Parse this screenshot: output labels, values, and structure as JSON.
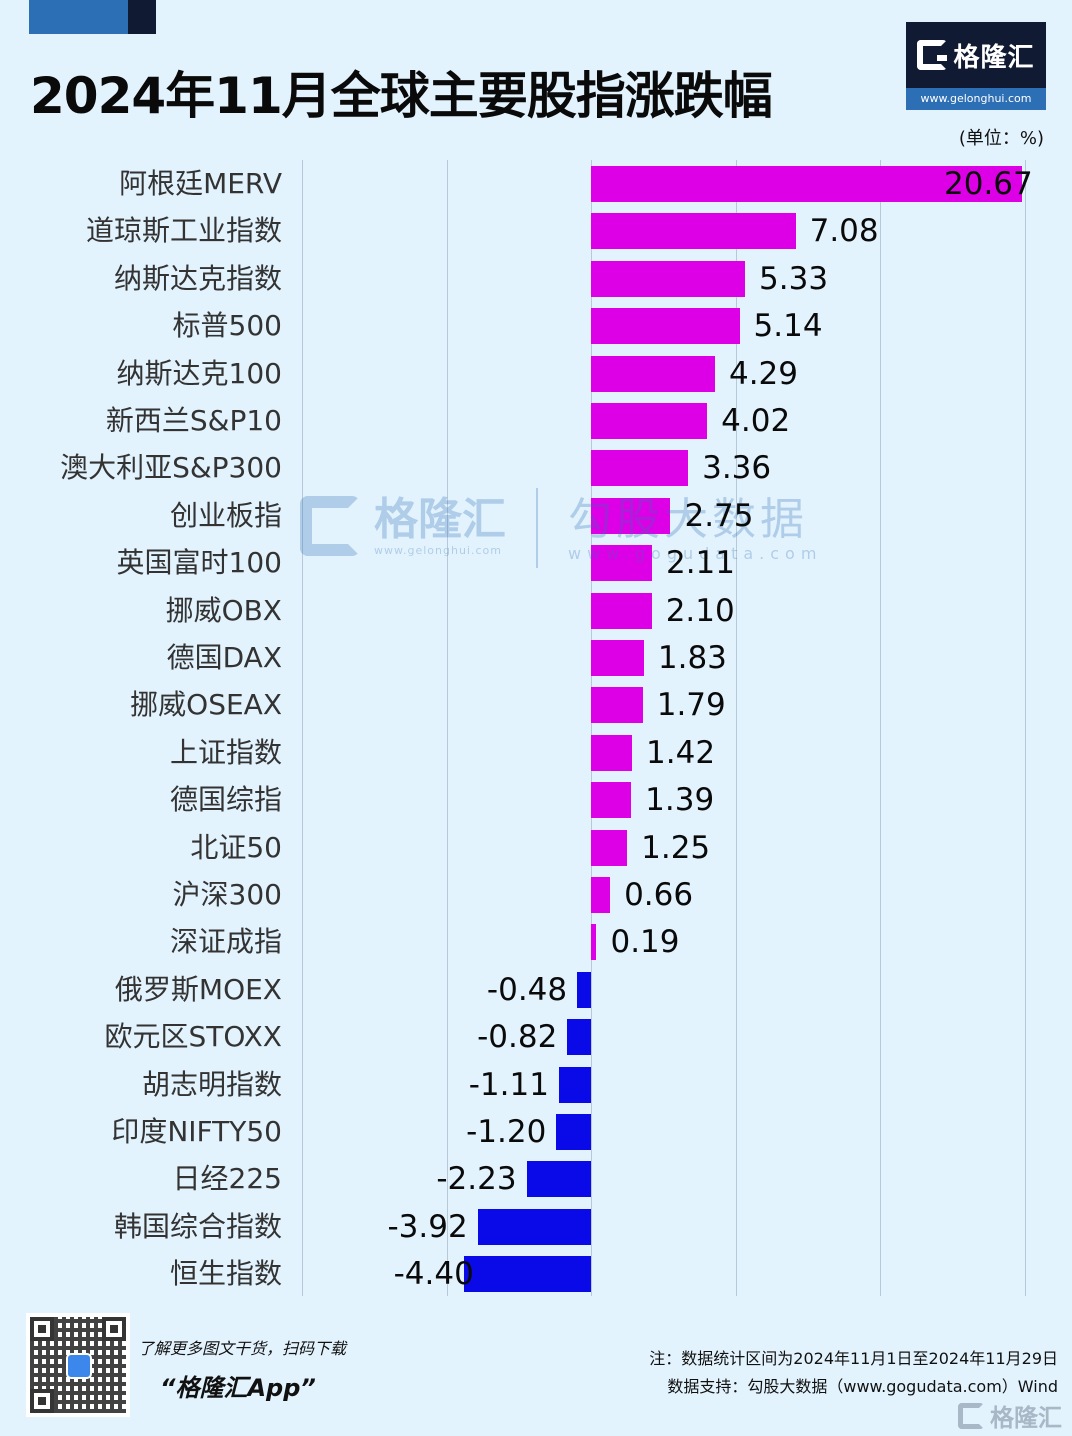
{
  "header": {
    "title": "2024年11月全球主要股指涨跌幅",
    "unit": "(单位：%)",
    "logo": {
      "name": "格隆汇",
      "url": "www.gelonghui.com"
    }
  },
  "colors": {
    "positive": "#dd00e6",
    "negative": "#0a0ae8",
    "background": "#e3f3fd",
    "brand_dark": "#101b33",
    "brand_blue": "#2d6fb5"
  },
  "watermark": {
    "left_name": "格隆汇",
    "left_url": "www.gelonghui.com",
    "right_name": "勾股大数据",
    "right_url": "www.gogudata.com"
  },
  "chart_data": {
    "type": "bar",
    "orientation": "horizontal",
    "title": "2024年11月全球主要股指涨跌幅",
    "unit": "%",
    "xlabel": "",
    "ylabel": "",
    "grid": true,
    "gridlines_x": [
      -10,
      -5,
      0,
      5,
      10,
      15
    ],
    "xlim": [
      -10,
      15
    ],
    "note": "20.67 bar truncated at axis edge",
    "categories": [
      "阿根廷MERV",
      "道琼斯工业指数",
      "纳斯达克指数",
      "标普500",
      "纳斯达克100",
      "新西兰S&P10",
      "澳大利亚S&P300",
      "创业板指",
      "英国富时100",
      "挪威OBX",
      "德国DAX",
      "挪威OSEAX",
      "上证指数",
      "德国综指",
      "北证50",
      "沪深300",
      "深证成指",
      "俄罗斯MOEX",
      "欧元区STOXX",
      "胡志明指数",
      "印度NIFTY50",
      "日经225",
      "韩国综合指数",
      "恒生指数"
    ],
    "values": [
      20.67,
      7.08,
      5.33,
      5.14,
      4.29,
      4.02,
      3.36,
      2.75,
      2.11,
      2.1,
      1.83,
      1.79,
      1.42,
      1.39,
      1.25,
      0.66,
      0.19,
      -0.48,
      -0.82,
      -1.11,
      -1.2,
      -2.23,
      -3.92,
      -4.4
    ],
    "value_labels": [
      "20.67",
      "7.08",
      "5.33",
      "5.14",
      "4.29",
      "4.02",
      "3.36",
      "2.75",
      "2.11",
      "2.10",
      "1.83",
      "1.79",
      "1.42",
      "1.39",
      "1.25",
      "0.66",
      "0.19",
      "-0.48",
      "-0.82",
      "-1.11",
      "-1.20",
      "-2.23",
      "-3.92",
      "-4.40"
    ]
  },
  "footer": {
    "promo_line": "了解更多图文干货，扫码下载",
    "promo_app": "“格隆汇App”",
    "note": "注：数据统计区间为2024年11月1日至2024年11月29日",
    "source": "数据支持：勾股大数据（www.gogudata.com）Wind",
    "brand": "格隆汇"
  }
}
